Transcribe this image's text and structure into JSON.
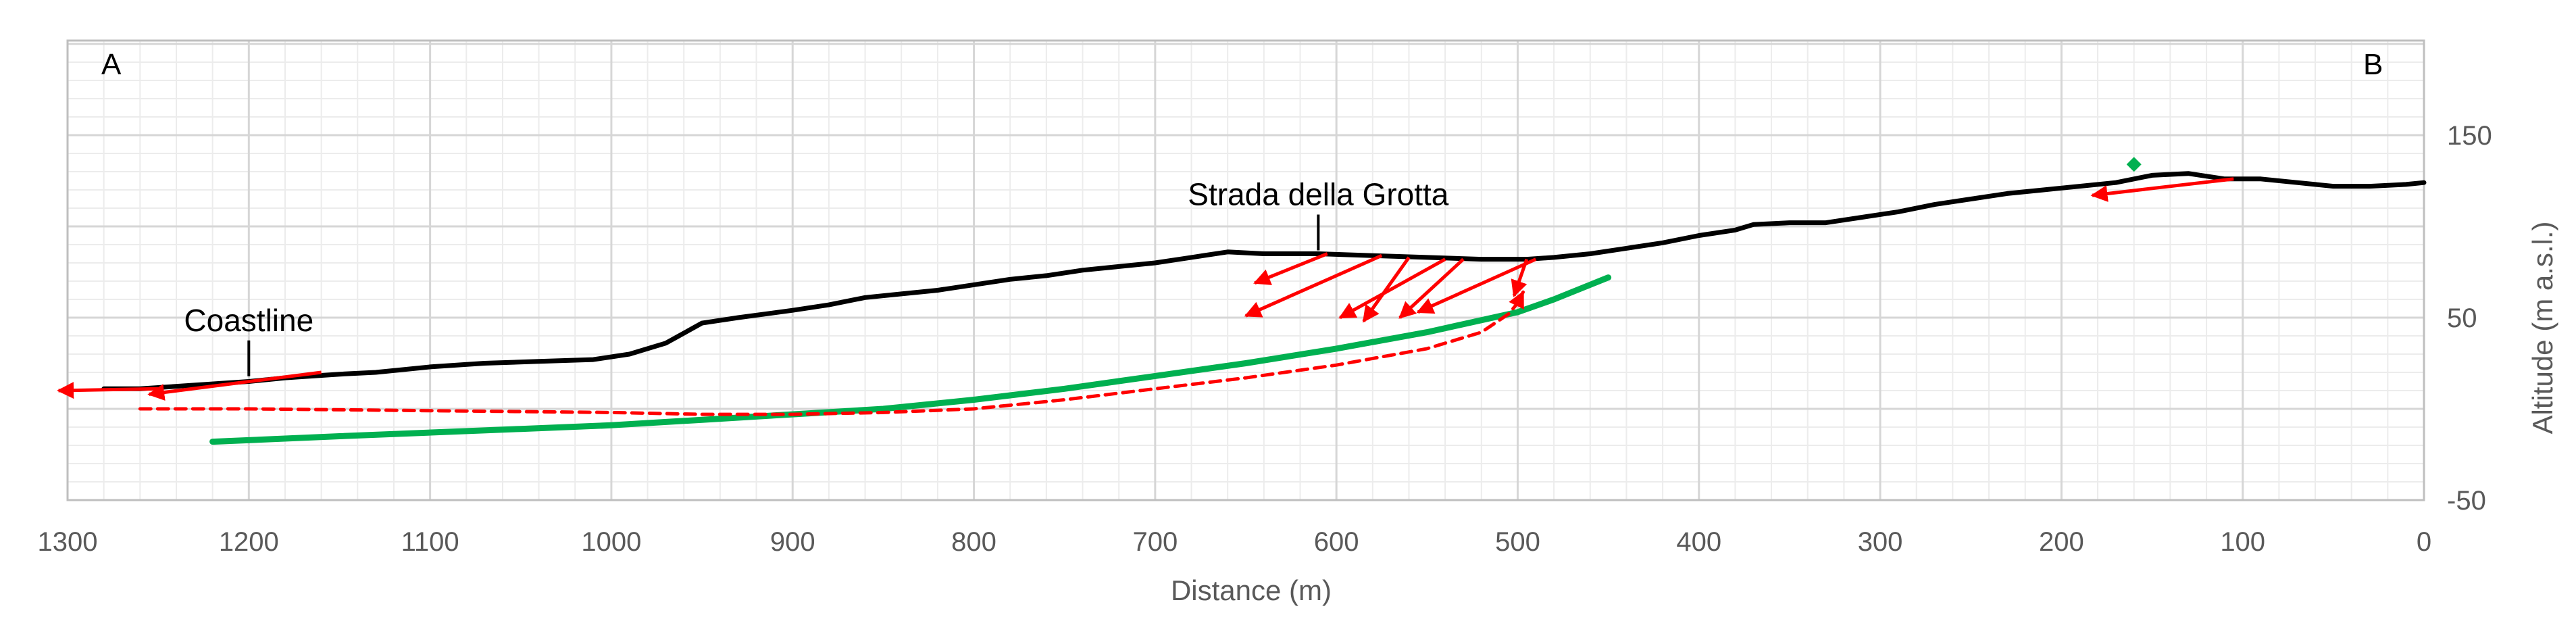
{
  "chart_data": {
    "type": "line",
    "xlabel": "Distance (m)",
    "ylabel": "Altitude (m a.s.l.)",
    "x_reversed": true,
    "xlim": [
      0,
      1300
    ],
    "ylim": [
      -50,
      150
    ],
    "x_ticks": [
      1300,
      1200,
      1100,
      1000,
      900,
      800,
      700,
      600,
      500,
      400,
      300,
      200,
      100,
      0
    ],
    "y_ticks": [
      150,
      50,
      -50
    ],
    "grid": true,
    "corner_labels": {
      "left": "A",
      "right": "B"
    },
    "colors": {
      "profile": "#000000",
      "sliding_surface": "#00b050",
      "displacement": "#ff0000",
      "marker": "#00b050"
    },
    "series": [
      {
        "key": "profile",
        "points": [
          [
            1280,
            11
          ],
          [
            1260,
            11
          ],
          [
            1230,
            13
          ],
          [
            1200,
            15
          ],
          [
            1180,
            17
          ],
          [
            1150,
            19
          ],
          [
            1130,
            20
          ],
          [
            1100,
            23
          ],
          [
            1070,
            25
          ],
          [
            1040,
            26
          ],
          [
            1010,
            27
          ],
          [
            990,
            30
          ],
          [
            970,
            36
          ],
          [
            950,
            47
          ],
          [
            930,
            50
          ],
          [
            900,
            54
          ],
          [
            880,
            57
          ],
          [
            860,
            61
          ],
          [
            840,
            63
          ],
          [
            820,
            65
          ],
          [
            800,
            68
          ],
          [
            780,
            71
          ],
          [
            760,
            73
          ],
          [
            740,
            76
          ],
          [
            720,
            78
          ],
          [
            700,
            80
          ],
          [
            680,
            83
          ],
          [
            660,
            86
          ],
          [
            640,
            85
          ],
          [
            610,
            85
          ],
          [
            580,
            84
          ],
          [
            550,
            83
          ],
          [
            520,
            82
          ],
          [
            495,
            82
          ],
          [
            480,
            83
          ],
          [
            460,
            85
          ],
          [
            440,
            88
          ],
          [
            420,
            91
          ],
          [
            400,
            95
          ],
          [
            380,
            98
          ],
          [
            370,
            101
          ],
          [
            350,
            102
          ],
          [
            330,
            102
          ],
          [
            310,
            105
          ],
          [
            290,
            108
          ],
          [
            270,
            112
          ],
          [
            250,
            115
          ],
          [
            230,
            118
          ],
          [
            210,
            120
          ],
          [
            190,
            122
          ],
          [
            170,
            124
          ],
          [
            150,
            128
          ],
          [
            130,
            129
          ],
          [
            110,
            126
          ],
          [
            90,
            126
          ],
          [
            70,
            124
          ],
          [
            50,
            122
          ],
          [
            30,
            122
          ],
          [
            10,
            123
          ],
          [
            0,
            124
          ]
        ]
      },
      {
        "key": "sliding_surface",
        "points": [
          [
            1220,
            -18
          ],
          [
            1150,
            -15
          ],
          [
            1050,
            -11
          ],
          [
            1000,
            -9
          ],
          [
            950,
            -6
          ],
          [
            900,
            -3
          ],
          [
            850,
            0
          ],
          [
            800,
            5
          ],
          [
            750,
            11
          ],
          [
            700,
            18
          ],
          [
            650,
            25
          ],
          [
            600,
            33
          ],
          [
            550,
            42
          ],
          [
            500,
            53
          ],
          [
            480,
            60
          ],
          [
            450,
            72
          ]
        ]
      },
      {
        "key": "displacement_dashed",
        "dashed": true,
        "points": [
          [
            1260,
            0
          ],
          [
            1200,
            0
          ],
          [
            1100,
            -1
          ],
          [
            1000,
            -2
          ],
          [
            950,
            -3
          ],
          [
            900,
            -3
          ],
          [
            850,
            -2
          ],
          [
            800,
            0
          ],
          [
            750,
            5
          ],
          [
            700,
            11
          ],
          [
            650,
            17
          ],
          [
            600,
            24
          ],
          [
            550,
            33
          ],
          [
            520,
            42
          ],
          [
            505,
            52
          ],
          [
            500,
            58
          ],
          [
            497,
            64
          ]
        ]
      }
    ],
    "vectors": [
      {
        "from": [
          1160,
          20
        ],
        "to": [
          1255,
          8
        ]
      },
      {
        "from": [
          1250,
          11
        ],
        "to": [
          1305,
          10
        ]
      },
      {
        "from": [
          105,
          126
        ],
        "to": [
          183,
          117
        ]
      },
      {
        "from": [
          605,
          85
        ],
        "to": [
          645,
          69
        ]
      },
      {
        "from": [
          575,
          84
        ],
        "to": [
          650,
          51
        ]
      },
      {
        "from": [
          540,
          82
        ],
        "to": [
          598,
          50
        ]
      },
      {
        "from": [
          560,
          83
        ],
        "to": [
          585,
          48
        ]
      },
      {
        "from": [
          530,
          82
        ],
        "to": [
          565,
          50
        ]
      },
      {
        "from": [
          495,
          82
        ],
        "to": [
          502,
          62
        ]
      },
      {
        "from": [
          490,
          82
        ],
        "to": [
          555,
          53
        ]
      }
    ],
    "marker": {
      "x": 160,
      "y": 134
    },
    "annotations": [
      {
        "text": "Strada della Grotta",
        "x": 610,
        "y": 85
      },
      {
        "text": "Coastline",
        "x": 1200,
        "y": 16
      }
    ]
  }
}
